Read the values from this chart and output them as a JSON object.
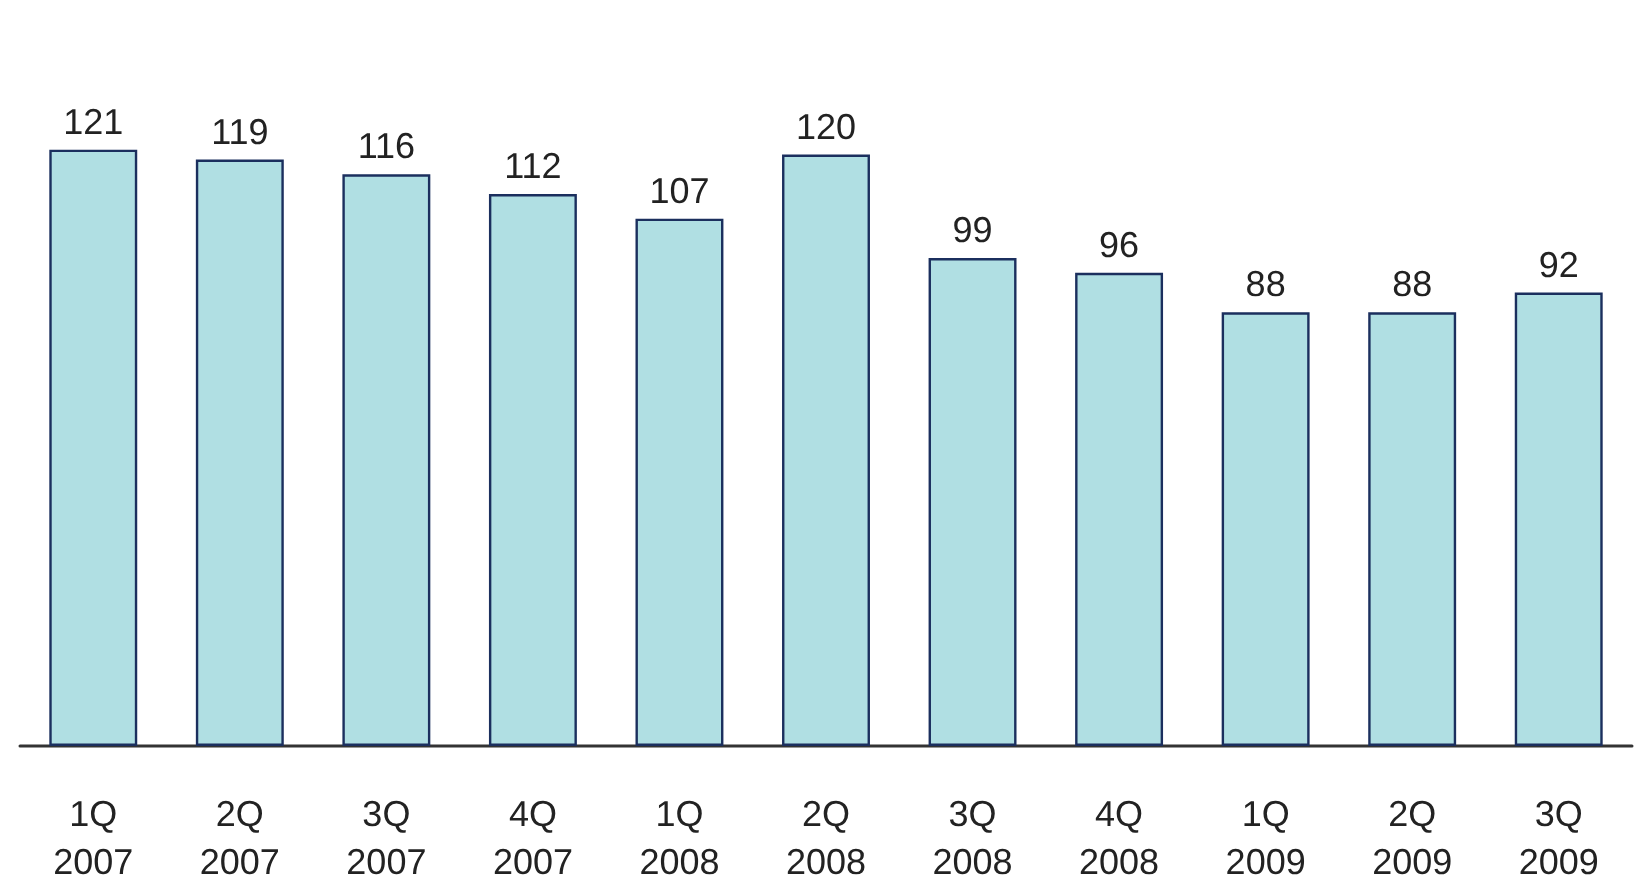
{
  "chart_data": {
    "type": "bar",
    "categories": [
      "1Q\n2007",
      "2Q\n2007",
      "3Q\n2007",
      "4Q\n2007",
      "1Q\n2008",
      "2Q\n2008",
      "3Q\n2008",
      "4Q\n2008",
      "1Q\n2009",
      "2Q\n2009",
      "3Q\n2009"
    ],
    "values": [
      121,
      119,
      116,
      112,
      107,
      120,
      99,
      96,
      88,
      88,
      92
    ],
    "color": "#b0dfe3",
    "data_labels": true
  }
}
